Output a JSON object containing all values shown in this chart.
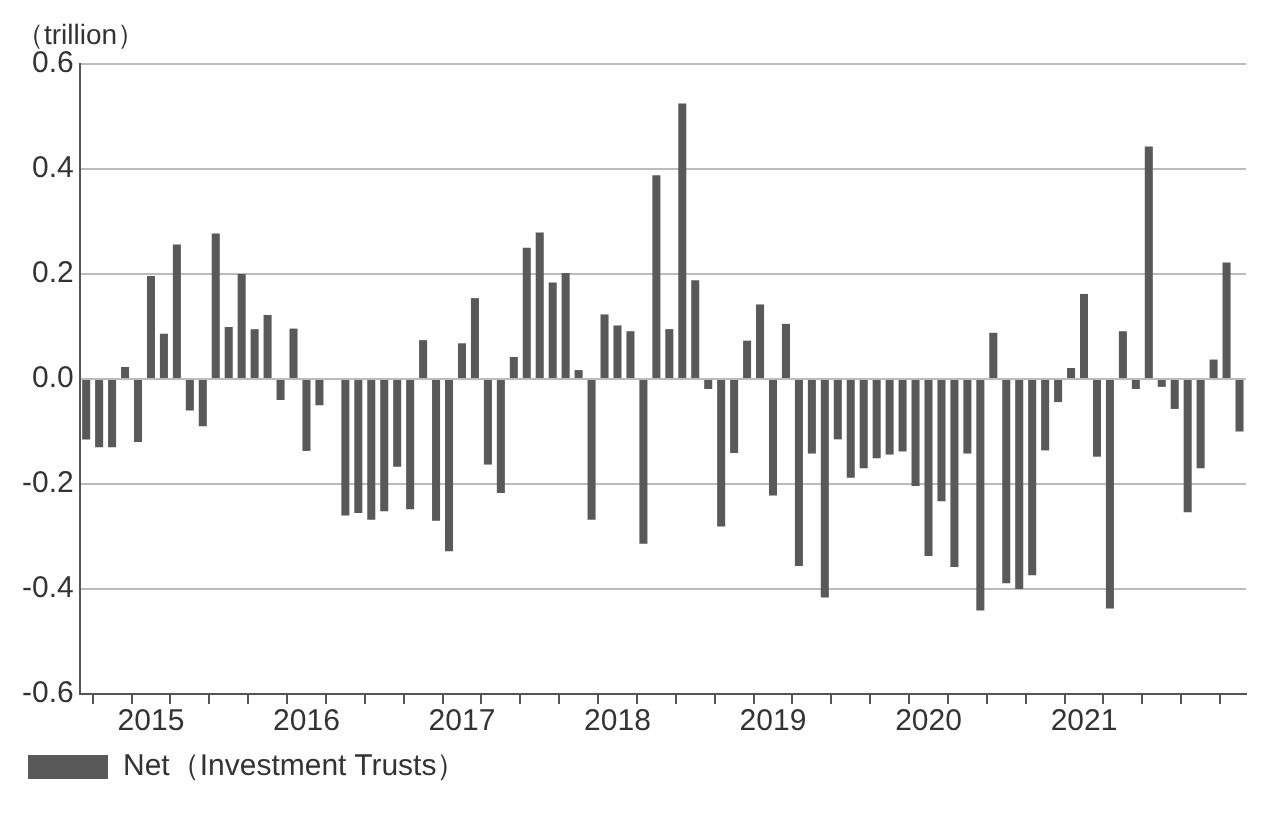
{
  "chart_data": {
    "type": "bar",
    "ylabel": "（trillion）",
    "categories": [
      null,
      null,
      null,
      null,
      null,
      "2015",
      null,
      null,
      null,
      null,
      null,
      null,
      null,
      null,
      null,
      null,
      null,
      "2016",
      null,
      null,
      null,
      null,
      null,
      null,
      null,
      null,
      null,
      null,
      null,
      "2017",
      null,
      null,
      null,
      null,
      null,
      null,
      null,
      null,
      null,
      null,
      null,
      "2018",
      null,
      null,
      null,
      null,
      null,
      null,
      null,
      null,
      null,
      null,
      null,
      "2019",
      null,
      null,
      null,
      null,
      null,
      null,
      null,
      null,
      null,
      null,
      null,
      "2020",
      null,
      null,
      null,
      null,
      null,
      null,
      null,
      null,
      null,
      null,
      null,
      "2021",
      null,
      null,
      null,
      null,
      null,
      null,
      null,
      null,
      null,
      null,
      null,
      null
    ],
    "series": [
      {
        "name": "Net（Investment Trusts）",
        "color": "#595959",
        "values": [
          -0.115,
          -0.13,
          -0.13,
          0.023,
          -0.12,
          0.196,
          0.086,
          0.256,
          -0.06,
          -0.09,
          0.277,
          0.099,
          0.2,
          0.095,
          0.122,
          -0.04,
          0.096,
          -0.137,
          -0.05,
          null,
          -0.26,
          -0.255,
          -0.268,
          -0.252,
          -0.167,
          -0.248,
          0.074,
          -0.27,
          -0.328,
          0.068,
          0.154,
          -0.163,
          -0.217,
          0.042,
          0.25,
          0.279,
          0.184,
          0.202,
          0.017,
          -0.268,
          0.123,
          0.102,
          0.091,
          -0.314,
          0.388,
          0.095,
          0.525,
          0.188,
          -0.019,
          -0.281,
          -0.141,
          0.073,
          0.142,
          -0.222,
          0.105,
          -0.356,
          -0.142,
          -0.416,
          -0.115,
          -0.188,
          -0.17,
          -0.151,
          -0.144,
          -0.138,
          -0.204,
          -0.337,
          -0.233,
          -0.358,
          -0.142,
          -0.441,
          0.088,
          -0.389,
          -0.4,
          -0.374,
          -0.136,
          -0.044,
          0.021,
          0.162,
          -0.148,
          -0.437,
          0.091,
          -0.019,
          0.443,
          -0.015,
          -0.057,
          -0.254,
          -0.17,
          0.037,
          0.222,
          -0.1
        ]
      }
    ],
    "ylim": [
      -0.6,
      0.6
    ],
    "yticks": [
      {
        "value": -0.6,
        "label": "-0.6"
      },
      {
        "value": -0.4,
        "label": "-0.4"
      },
      {
        "value": -0.2,
        "label": "-0.2"
      },
      {
        "value": 0,
        "label": "0.0"
      },
      {
        "value": 0.2,
        "label": "0.2"
      },
      {
        "value": 0.4,
        "label": "0.4"
      },
      {
        "value": 0.6,
        "label": "0.6"
      }
    ],
    "grid": "y",
    "legend": "bottom left"
  }
}
